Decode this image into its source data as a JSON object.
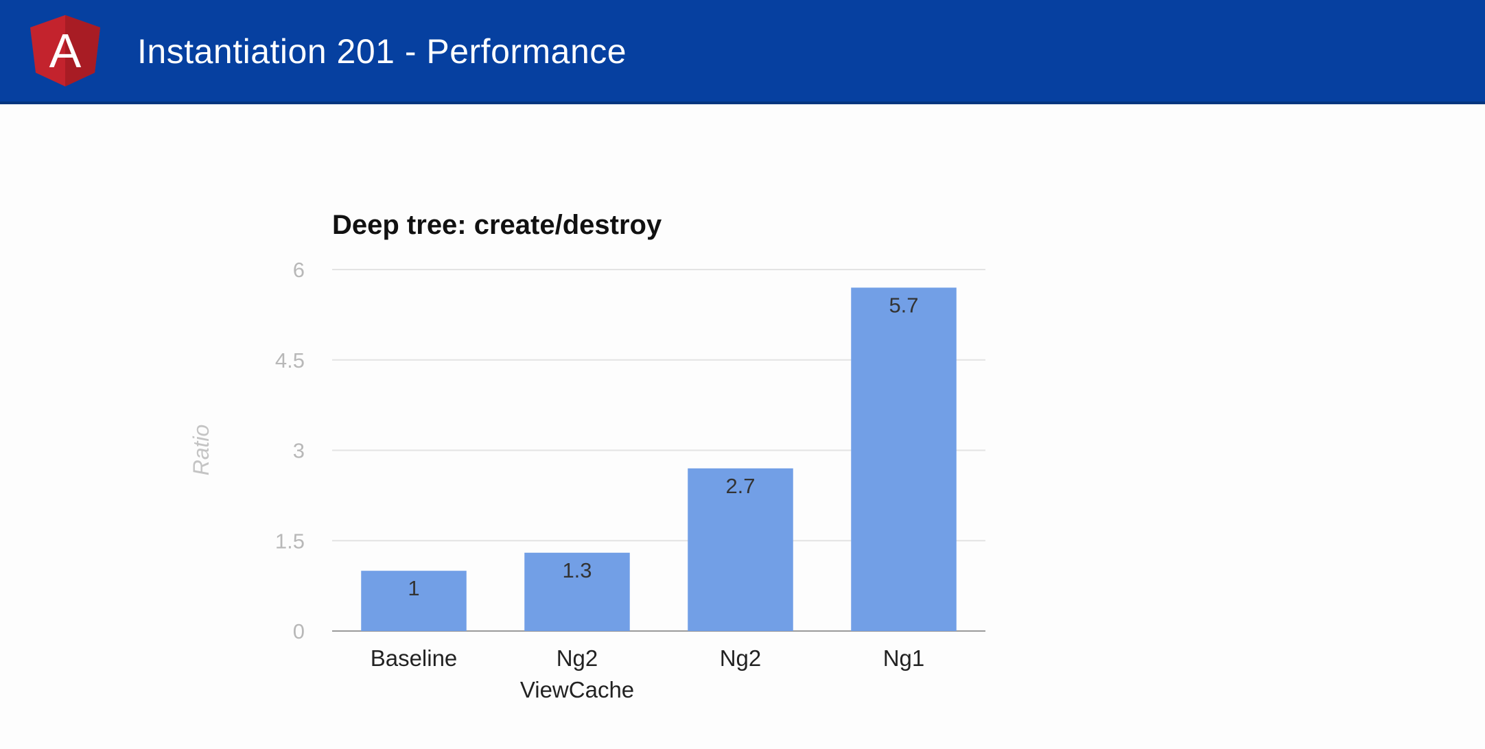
{
  "header": {
    "title": "Instantiation 201 - Performance",
    "logo_letter": "A",
    "background_color": "#0640a0",
    "logo_icon": "angular-shield-icon"
  },
  "chart_data": {
    "type": "bar",
    "title": "Deep tree: create/destroy",
    "xlabel": "",
    "ylabel": "Ratio",
    "categories": [
      [
        "Baseline"
      ],
      [
        "Ng2",
        "ViewCache"
      ],
      [
        "Ng2"
      ],
      [
        "Ng1"
      ]
    ],
    "values": [
      1,
      1.3,
      2.7,
      5.7
    ],
    "data_labels": [
      "1",
      "1.3",
      "2.7",
      "5.7"
    ],
    "ylim": [
      0,
      6
    ],
    "yticks": [
      0,
      1.5,
      3,
      4.5,
      6
    ],
    "ytick_labels": [
      "0",
      "1.5",
      "3",
      "4.5",
      "6"
    ],
    "grid": true,
    "legend": "none",
    "bar_color": "#729fe6"
  }
}
